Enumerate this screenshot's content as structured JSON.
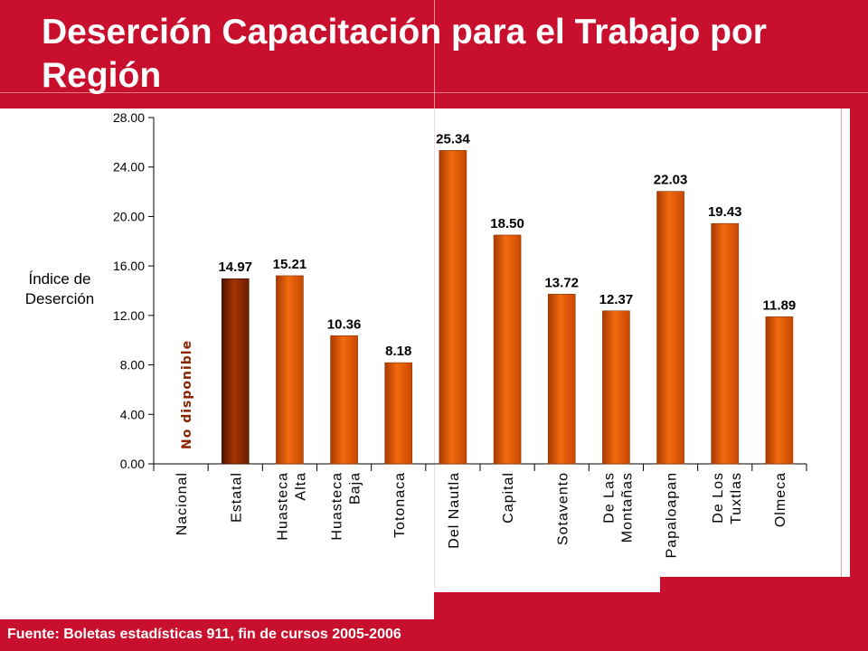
{
  "title": "Deserción Capacitación para el Trabajo por Región",
  "footer": "Fuente: Boletas estadísticas 911, fin de cursos 2005-2006",
  "colors": {
    "brand_red": "#c8102e",
    "bar_orange": "#e55a00",
    "bar_highlight": "#8b2500",
    "no_data_text": "#8b2500"
  },
  "chart_data": {
    "type": "bar",
    "title": "",
    "xlabel": "",
    "ylabel": "Índice de Deserción",
    "ylim": [
      0,
      28
    ],
    "yticks": [
      "0.00",
      "4.00",
      "8.00",
      "12.00",
      "16.00",
      "20.00",
      "24.00",
      "28.00"
    ],
    "grid": false,
    "categories": [
      "Nacional",
      "Estatal",
      "Huasteca Alta",
      "Huasteca Baja",
      "Totonaca",
      "Del Nautla",
      "Capital",
      "Sotavento",
      "De Las Montañas",
      "Papaloapan",
      "De Los Tuxtlas",
      "Olmeca"
    ],
    "values": [
      null,
      14.97,
      15.21,
      10.36,
      8.18,
      25.34,
      18.5,
      13.72,
      12.37,
      22.03,
      19.43,
      11.89
    ],
    "value_labels": [
      "",
      "14.97",
      "15.21",
      "10.36",
      "8.18",
      "25.34",
      "18.50",
      "13.72",
      "12.37",
      "22.03",
      "19.43",
      "11.89"
    ],
    "highlight_category": "Estatal",
    "annotations": [
      "No disponible"
    ]
  }
}
